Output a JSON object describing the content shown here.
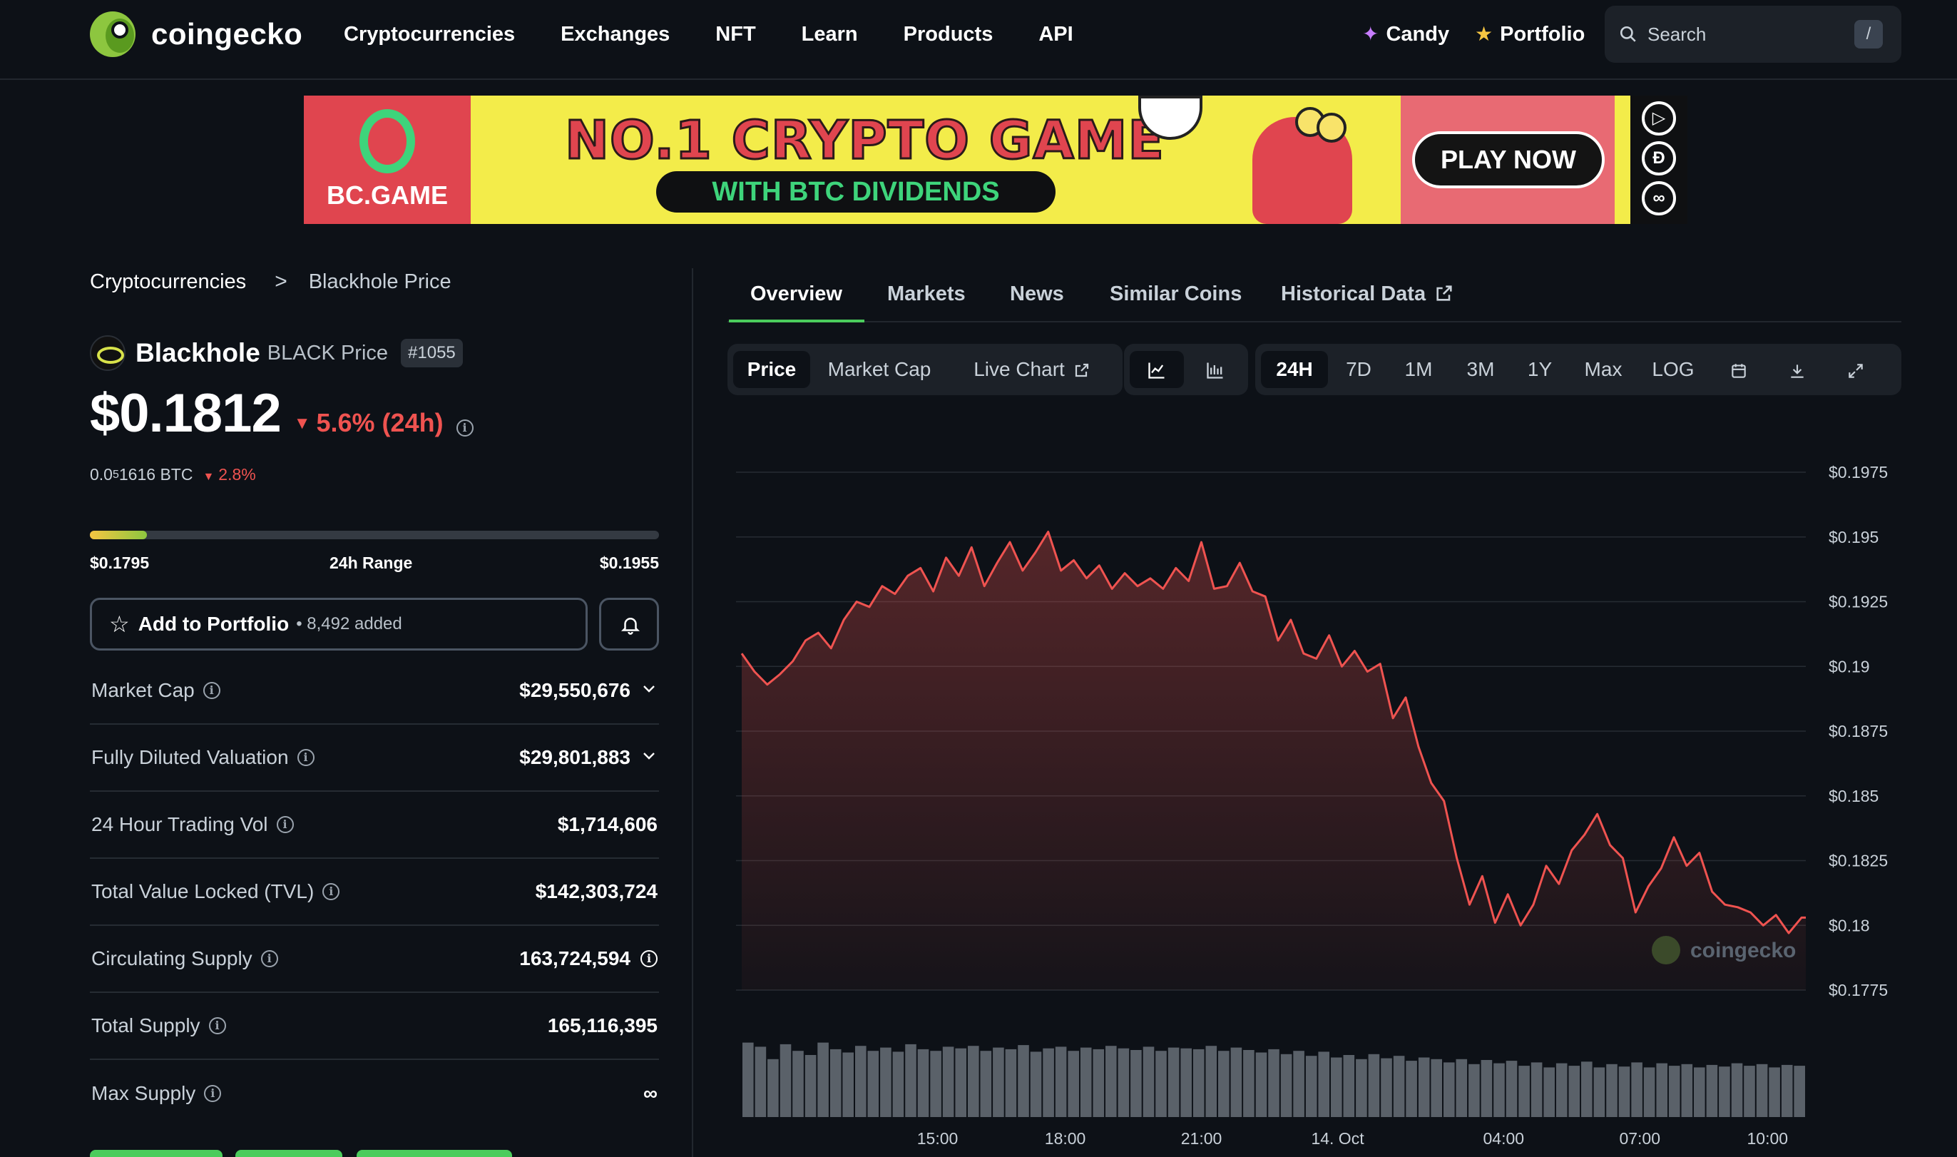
{
  "header": {
    "brand": "coingecko",
    "nav": [
      "Cryptocurrencies",
      "Exchanges",
      "NFT",
      "Learn",
      "Products",
      "API"
    ],
    "candy": "Candy",
    "portfolio": "Portfolio",
    "search_placeholder": "Search",
    "search_shortcut": "/"
  },
  "ad": {
    "brand": "BC.GAME",
    "title": "NO.1 CRYPTO GAME",
    "subtitle": "WITH BTC DIVIDENDS",
    "cta": "PLAY NOW",
    "colors": {
      "bg": "#f3ec4a",
      "red": "#e0454f",
      "green": "#3ed47b"
    }
  },
  "breadcrumb": {
    "parent": "Cryptocurrencies",
    "separator": ">",
    "current": "Blackhole Price"
  },
  "coin": {
    "name": "Blackhole",
    "symbol_label": "BLACK Price",
    "rank": "#1055",
    "price": "$0.1812",
    "change_24h": "5.6% (24h)",
    "btc_price_prefix": "0.0",
    "btc_price_sub": "5",
    "btc_price_suffix": "1616 BTC",
    "btc_change": "2.8%",
    "change_color": "#ef5350"
  },
  "range": {
    "low": "$0.1795",
    "label": "24h Range",
    "high": "$0.1955",
    "fill_fraction": 0.1
  },
  "portfolio_btn": {
    "label": "Add to Portfolio",
    "count": "• 8,492 added"
  },
  "stats": [
    {
      "label": "Market Cap",
      "value": "$29,550,676",
      "chevron": true,
      "value_info": false
    },
    {
      "label": "Fully Diluted Valuation",
      "value": "$29,801,883",
      "chevron": true,
      "value_info": false
    },
    {
      "label": "24 Hour Trading Vol",
      "value": "$1,714,606",
      "chevron": false,
      "value_info": false
    },
    {
      "label": "Total Value Locked (TVL)",
      "value": "$142,303,724",
      "chevron": false,
      "value_info": false
    },
    {
      "label": "Circulating Supply",
      "value": "163,724,594",
      "chevron": false,
      "value_info": true
    },
    {
      "label": "Total Supply",
      "value": "165,116,395",
      "chevron": false,
      "value_info": false
    },
    {
      "label": "Max Supply",
      "value": "∞",
      "chevron": false,
      "value_info": false
    }
  ],
  "tabs": [
    "Overview",
    "Markets",
    "News",
    "Similar Coins",
    "Historical Data"
  ],
  "active_tab": "Overview",
  "chart_toolbar": {
    "metric_buttons": [
      "Price",
      "Market Cap",
      "Live Chart"
    ],
    "active_metric": "Price",
    "chart_type_icons": [
      "line-chart-icon",
      "candlestick-icon"
    ],
    "ranges": [
      "24H",
      "7D",
      "1M",
      "3M",
      "1Y",
      "Max",
      "LOG"
    ],
    "active_range": "24H",
    "util_icons": [
      "calendar-icon",
      "download-icon",
      "expand-icon"
    ]
  },
  "chart_data": {
    "type": "area",
    "watermark": "coingecko",
    "ylim": [
      0.1775,
      0.1975
    ],
    "y_ticks": [
      "$0.1975",
      "$0.195",
      "$0.1925",
      "$0.19",
      "$0.1875",
      "$0.185",
      "$0.1825",
      "$0.18",
      "$0.1775"
    ],
    "y_tick_values": [
      0.1975,
      0.195,
      0.1925,
      0.19,
      0.1875,
      0.185,
      0.1825,
      0.18,
      0.1775
    ],
    "x_ticks": [
      "15:00",
      "18:00",
      "21:00",
      "14. Oct",
      "04:00",
      "07:00",
      "10:00"
    ],
    "x_tick_hours": [
      4.6,
      7.6,
      10.8,
      14.0,
      17.9,
      21.1,
      24.1
    ],
    "x_range_hours": [
      0,
      25
    ],
    "series": [
      {
        "x": [
          0,
          0.3,
          0.6,
          0.9,
          1.2,
          1.5,
          1.8,
          2.1,
          2.4,
          2.7,
          3.0,
          3.3,
          3.6,
          3.9,
          4.2,
          4.5,
          4.8,
          5.1,
          5.4,
          5.7,
          6.0,
          6.3,
          6.6,
          6.9,
          7.2,
          7.5,
          7.8,
          8.1,
          8.4,
          8.7,
          9.0,
          9.3,
          9.6,
          9.9,
          10.2,
          10.5,
          10.8,
          11.1,
          11.4,
          11.7,
          12.0,
          12.3,
          12.6,
          12.9,
          13.2,
          13.5,
          13.8,
          14.1,
          14.4,
          14.7,
          15.0,
          15.3,
          15.6,
          15.9,
          16.2,
          16.5,
          16.8,
          17.1,
          17.4,
          17.7,
          18.0,
          18.3,
          18.6,
          18.9,
          19.2,
          19.5,
          19.8,
          20.1,
          20.4,
          20.7,
          21.0,
          21.3,
          21.6,
          21.9,
          22.2,
          22.5,
          22.8,
          23.1,
          23.4,
          23.7,
          24.0,
          24.3,
          24.6,
          24.9,
          25.0
        ],
        "y": [
          0.1905,
          0.1898,
          0.1893,
          0.1897,
          0.1902,
          0.191,
          0.1913,
          0.1907,
          0.1918,
          0.1925,
          0.1923,
          0.1931,
          0.1928,
          0.1935,
          0.1938,
          0.1929,
          0.1942,
          0.1935,
          0.1946,
          0.1931,
          0.194,
          0.1948,
          0.1937,
          0.1944,
          0.1952,
          0.1937,
          0.1941,
          0.1934,
          0.1939,
          0.193,
          0.1936,
          0.1931,
          0.1934,
          0.193,
          0.1938,
          0.1933,
          0.1948,
          0.193,
          0.1931,
          0.194,
          0.1929,
          0.1927,
          0.191,
          0.1918,
          0.1905,
          0.1903,
          0.1912,
          0.19,
          0.1906,
          0.1898,
          0.1901,
          0.188,
          0.1888,
          0.1869,
          0.1855,
          0.1848,
          0.1826,
          0.1808,
          0.1819,
          0.1801,
          0.1812,
          0.18,
          0.1808,
          0.1823,
          0.1816,
          0.1829,
          0.1835,
          0.1843,
          0.1831,
          0.1826,
          0.1805,
          0.1815,
          0.1822,
          0.1834,
          0.1823,
          0.1828,
          0.1813,
          0.1808,
          0.1807,
          0.1805,
          0.18,
          0.1804,
          0.1797,
          0.1803,
          0.1803
        ]
      }
    ],
    "volume": [
      0.9,
      0.85,
      0.7,
      0.88,
      0.8,
      0.75,
      0.9,
      0.82,
      0.78,
      0.86,
      0.8,
      0.84,
      0.79,
      0.88,
      0.82,
      0.8,
      0.85,
      0.83,
      0.86,
      0.8,
      0.84,
      0.82,
      0.87,
      0.79,
      0.83,
      0.85,
      0.8,
      0.84,
      0.82,
      0.86,
      0.83,
      0.81,
      0.85,
      0.8,
      0.84,
      0.83,
      0.82,
      0.86,
      0.8,
      0.84,
      0.81,
      0.78,
      0.82,
      0.76,
      0.8,
      0.74,
      0.79,
      0.72,
      0.75,
      0.7,
      0.76,
      0.71,
      0.74,
      0.68,
      0.72,
      0.7,
      0.66,
      0.7,
      0.64,
      0.69,
      0.65,
      0.68,
      0.62,
      0.66,
      0.6,
      0.65,
      0.62,
      0.67,
      0.6,
      0.64,
      0.61,
      0.66,
      0.6,
      0.65,
      0.62,
      0.64,
      0.6,
      0.63,
      0.61,
      0.65,
      0.62,
      0.64,
      0.6,
      0.63,
      0.62
    ]
  }
}
